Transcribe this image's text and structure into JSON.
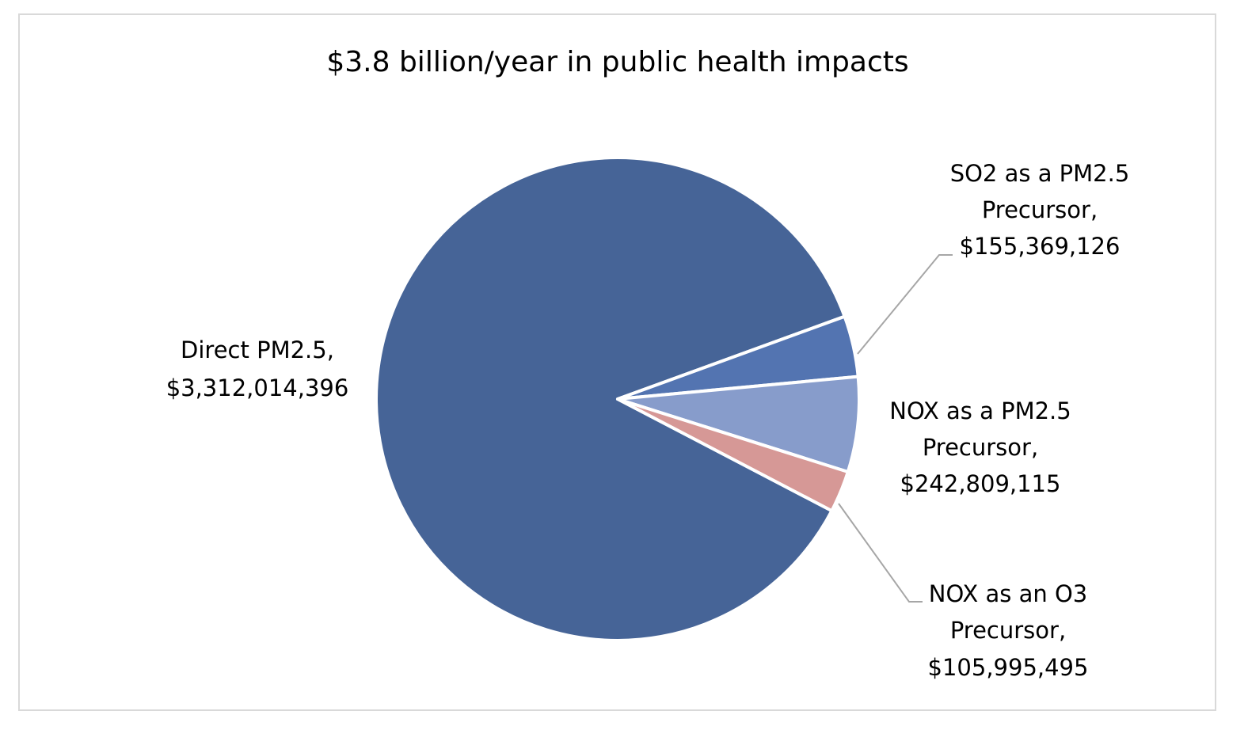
{
  "chart_data": {
    "type": "pie",
    "title": "$3.8 billion/year in public health impacts",
    "categories": [
      "Direct PM2.5",
      "SO2 as a PM2.5 Precursor",
      "NOX as a PM2.5 Precursor",
      "NOX as an O3 Precursor"
    ],
    "values": [
      3312014396,
      155369126,
      242809115,
      105995495
    ],
    "value_labels": [
      "$3,312,014,396",
      "$155,369,126",
      "$242,809,115",
      "$105,995,495"
    ],
    "label_lines": [
      [
        "Direct PM2.5,",
        "$3,312,014,396"
      ],
      [
        "SO2 as a PM2.5",
        "Precursor,",
        "$155,369,126"
      ],
      [
        "NOX as a PM2.5",
        "Precursor,",
        "$242,809,115"
      ],
      [
        "NOX as an O3",
        "Precursor,",
        "$105,995,495"
      ]
    ],
    "colors": [
      "#466497",
      "#5374B1",
      "#879CCB",
      "#D69896"
    ],
    "legend": "none",
    "start_angle_note": "clockwise from ~294deg (math) after the last slice",
    "data_labels": "outside-end with leader lines"
  }
}
